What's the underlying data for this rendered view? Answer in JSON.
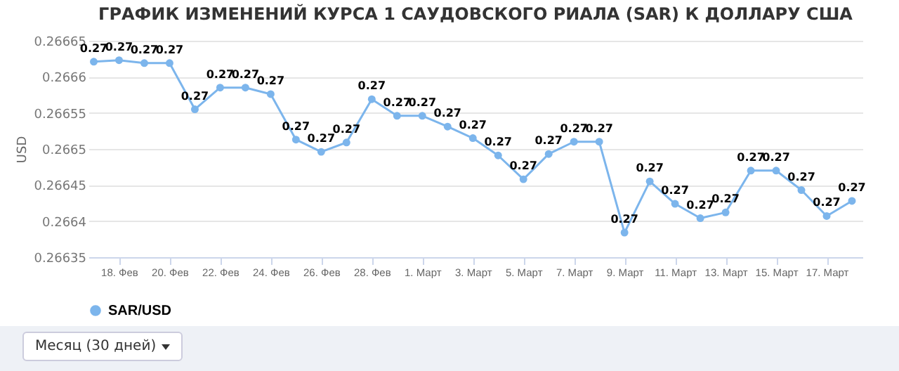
{
  "chart_data": {
    "type": "line",
    "title": "ГРАФИК ИЗМЕНЕНИЙ КУРСА 1 САУДОВСКОГО РИАЛА (SAR) К ДОЛЛАРУ США",
    "ylabel": "USD",
    "x": [
      "--02-17",
      "--02-18",
      "--02-19",
      "--02-20",
      "--02-21",
      "--02-22",
      "--02-23",
      "--02-24",
      "--02-25",
      "--02-26",
      "--02-27",
      "--02-28",
      "--02-29",
      "--03-01",
      "--03-02",
      "--03-03",
      "--03-04",
      "--03-05",
      "--03-06",
      "--03-07",
      "--03-08",
      "--03-09",
      "--03-10",
      "--03-11",
      "--03-12",
      "--03-13",
      "--03-14",
      "--03-15",
      "--03-16",
      "--03-17",
      "--03-18"
    ],
    "series": [
      {
        "name": "SAR/USD",
        "color": "#7cb5ec",
        "values": [
          0.266621,
          0.266623,
          0.266619,
          0.266619,
          0.266555,
          0.266585,
          0.266585,
          0.266576,
          0.266513,
          0.266496,
          0.266509,
          0.266569,
          0.266546,
          0.266546,
          0.266531,
          0.266515,
          0.266491,
          0.266458,
          0.266493,
          0.26651,
          0.26651,
          0.266384,
          0.266455,
          0.266424,
          0.266404,
          0.266412,
          0.26647,
          0.26647,
          0.266443,
          0.266407,
          0.266428
        ],
        "value_labels": [
          "0.27",
          "0.27",
          "0.27",
          "0.27",
          "0.27",
          "0.27",
          "0.27",
          "0.27",
          "0.27",
          "0.27",
          "0.27",
          "0.27",
          "0.27",
          "0.27",
          "0.27",
          "0.27",
          "0.27",
          "0.27",
          "0.27",
          "0.27",
          "0.27",
          "0.27",
          "0.27",
          "0.27",
          "0.27",
          "0.27",
          "0.27",
          "0.27",
          "0.27",
          "0.27",
          "0.27"
        ]
      }
    ],
    "xlim": [
      "--02-16T19:00",
      "--03-18T10:00"
    ],
    "xticks": [
      {
        "value": "--02-18",
        "label": "18. Фев"
      },
      {
        "value": "--02-20",
        "label": "20. Фев"
      },
      {
        "value": "--02-22",
        "label": "22. Фев"
      },
      {
        "value": "--02-24",
        "label": "24. Фев"
      },
      {
        "value": "--02-26",
        "label": "26. Фев"
      },
      {
        "value": "--02-28",
        "label": "28. Фев"
      },
      {
        "value": "--03-01",
        "label": "1. Март"
      },
      {
        "value": "--03-03",
        "label": "3. Март"
      },
      {
        "value": "--03-05",
        "label": "5. Март"
      },
      {
        "value": "--03-07",
        "label": "7. Март"
      },
      {
        "value": "--03-09",
        "label": "9. Март"
      },
      {
        "value": "--03-11",
        "label": "11. Март"
      },
      {
        "value": "--03-13",
        "label": "13. Март"
      },
      {
        "value": "--03-15",
        "label": "15. Март"
      },
      {
        "value": "--03-17",
        "label": "17. Март"
      }
    ],
    "ylim": [
      0.26635,
      0.26665
    ],
    "yticks": [
      0.26635,
      0.2664,
      0.26645,
      0.2665,
      0.26655,
      0.2666,
      0.26665
    ],
    "grid": "y",
    "legend": "bottom",
    "marker": "circle",
    "line_style": "solid",
    "annotations": [
      "Месяц (30 дней)"
    ]
  }
}
